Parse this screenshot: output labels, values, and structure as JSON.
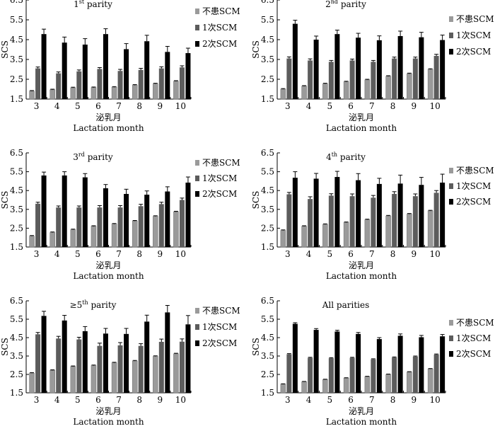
{
  "figure": {
    "shared": {
      "ylabel": "SCS",
      "xlabel_cn": "泌乳月",
      "xlabel_en": "Lactation month",
      "categories": [
        "3",
        "4",
        "5",
        "6",
        "7",
        "8",
        "9",
        "10"
      ],
      "yticks": [
        "1.5",
        "2.5",
        "3.5",
        "4.5",
        "5.5",
        "6.5"
      ],
      "legend": [
        "不患SCM",
        "1次SCM",
        "2次SCM"
      ],
      "colors": {
        "none": "#9a9a9a",
        "once": "#5c5c5c",
        "twice": "#000000"
      }
    }
  },
  "chart_data": [
    {
      "type": "bar",
      "title": "1st parity",
      "title_main": "1",
      "title_sup": "st",
      "title_rest": " parity",
      "categories": [
        "3",
        "4",
        "5",
        "6",
        "7",
        "8",
        "9",
        "10"
      ],
      "ylim": [
        1.5,
        6.5
      ],
      "ylabel": "SCS",
      "xlabel": "泌乳月 Lactation month",
      "legend_position": "top-right",
      "series": [
        {
          "name": "不患SCM",
          "values": [
            1.9,
            1.97,
            2.07,
            2.08,
            2.1,
            2.2,
            2.27,
            2.4
          ],
          "errors": [
            0.03,
            0.03,
            0.03,
            0.03,
            0.03,
            0.03,
            0.03,
            0.03
          ]
        },
        {
          "name": "1次SCM",
          "values": [
            3.05,
            2.8,
            2.9,
            3.02,
            2.92,
            2.97,
            3.05,
            3.1
          ],
          "errors": [
            0.07,
            0.07,
            0.07,
            0.07,
            0.08,
            0.08,
            0.08,
            0.08
          ]
        },
        {
          "name": "2次SCM",
          "values": [
            4.78,
            4.35,
            4.25,
            4.78,
            4.02,
            4.42,
            3.88,
            3.82
          ],
          "errors": [
            0.25,
            0.28,
            0.3,
            0.27,
            0.28,
            0.3,
            0.28,
            0.25
          ]
        }
      ]
    },
    {
      "type": "bar",
      "title": "2nd parity",
      "title_main": "2",
      "title_sup": "nd",
      "title_rest": " parity",
      "categories": [
        "3",
        "4",
        "5",
        "6",
        "7",
        "8",
        "9",
        "10"
      ],
      "ylim": [
        1.5,
        6.5
      ],
      "ylabel": "SCS",
      "xlabel": "泌乳月 Lactation month",
      "legend_position": "top-right",
      "series": [
        {
          "name": "不患SCM",
          "values": [
            2.0,
            2.15,
            2.27,
            2.37,
            2.47,
            2.65,
            2.78,
            3.0
          ],
          "errors": [
            0.03,
            0.03,
            0.03,
            0.03,
            0.03,
            0.03,
            0.03,
            0.03
          ]
        },
        {
          "name": "1次SCM",
          "values": [
            3.55,
            3.45,
            3.38,
            3.45,
            3.38,
            3.55,
            3.55,
            3.68
          ],
          "errors": [
            0.08,
            0.08,
            0.07,
            0.07,
            0.07,
            0.07,
            0.07,
            0.08
          ]
        },
        {
          "name": "2次SCM",
          "values": [
            5.3,
            4.5,
            4.78,
            4.6,
            4.47,
            4.68,
            4.62,
            4.48
          ],
          "errors": [
            0.18,
            0.18,
            0.2,
            0.22,
            0.22,
            0.25,
            0.25,
            0.25
          ]
        }
      ]
    },
    {
      "type": "bar",
      "title": "3rd parity",
      "title_main": "3",
      "title_sup": "rd",
      "title_rest": " parity",
      "categories": [
        "3",
        "4",
        "5",
        "6",
        "7",
        "8",
        "9",
        "10"
      ],
      "ylim": [
        1.5,
        6.5
      ],
      "ylabel": "SCS",
      "xlabel": "泌乳月 Lactation month",
      "legend_position": "top-right",
      "series": [
        {
          "name": "不患SCM",
          "values": [
            2.08,
            2.27,
            2.42,
            2.6,
            2.72,
            2.88,
            3.13,
            3.37
          ],
          "errors": [
            0.03,
            0.03,
            0.03,
            0.03,
            0.03,
            0.03,
            0.03,
            0.03
          ]
        },
        {
          "name": "1次SCM",
          "values": [
            3.8,
            3.6,
            3.6,
            3.6,
            3.6,
            3.67,
            3.78,
            4.0
          ],
          "errors": [
            0.08,
            0.08,
            0.08,
            0.1,
            0.1,
            0.1,
            0.1,
            0.1
          ]
        },
        {
          "name": "2次SCM",
          "values": [
            5.3,
            5.3,
            5.2,
            4.62,
            4.32,
            4.28,
            4.45,
            4.92
          ],
          "errors": [
            0.18,
            0.2,
            0.2,
            0.2,
            0.25,
            0.2,
            0.25,
            0.3
          ]
        }
      ]
    },
    {
      "type": "bar",
      "title": "4th parity",
      "title_main": "4",
      "title_sup": "th",
      "title_rest": " parity",
      "categories": [
        "3",
        "4",
        "5",
        "6",
        "7",
        "8",
        "9",
        "10"
      ],
      "ylim": [
        1.5,
        6.5
      ],
      "ylabel": "SCS",
      "xlabel": "泌乳月 Lactation month",
      "legend_position": "top-right",
      "series": [
        {
          "name": "不患SCM",
          "values": [
            2.38,
            2.6,
            2.7,
            2.8,
            2.95,
            3.15,
            3.25,
            3.42
          ],
          "errors": [
            0.03,
            0.03,
            0.03,
            0.03,
            0.03,
            0.03,
            0.03,
            0.03
          ]
        },
        {
          "name": "1次SCM",
          "values": [
            4.3,
            4.05,
            4.23,
            4.2,
            4.12,
            4.32,
            4.2,
            4.38
          ],
          "errors": [
            0.1,
            0.12,
            0.1,
            0.12,
            0.12,
            0.12,
            0.12,
            0.12
          ]
        },
        {
          "name": "2次SCM",
          "values": [
            5.18,
            5.13,
            5.22,
            5.05,
            4.85,
            4.87,
            4.8,
            4.92
          ],
          "errors": [
            0.32,
            0.28,
            0.3,
            0.35,
            0.3,
            0.45,
            0.4,
            0.45
          ]
        }
      ]
    },
    {
      "type": "bar",
      "title": "≥5th parity",
      "title_main": "≥5",
      "title_sup": "th",
      "title_rest": " parity",
      "categories": [
        "3",
        "4",
        "5",
        "6",
        "7",
        "8",
        "9",
        "10"
      ],
      "ylim": [
        1.5,
        6.5
      ],
      "ylabel": "SCS",
      "xlabel": "泌乳月 Lactation month",
      "legend_position": "right",
      "series": [
        {
          "name": "不患SCM",
          "values": [
            2.57,
            2.72,
            2.93,
            2.98,
            3.13,
            3.23,
            3.48,
            3.62
          ],
          "errors": [
            0.03,
            0.03,
            0.03,
            0.03,
            0.03,
            0.03,
            0.03,
            0.03
          ]
        },
        {
          "name": "1次SCM",
          "values": [
            4.68,
            4.45,
            4.4,
            4.05,
            4.08,
            4.05,
            4.27,
            4.28
          ],
          "errors": [
            0.1,
            0.12,
            0.12,
            0.15,
            0.15,
            0.12,
            0.15,
            0.15
          ]
        },
        {
          "name": "2次SCM",
          "values": [
            5.68,
            5.43,
            4.85,
            4.72,
            4.7,
            5.37,
            5.87,
            5.22
          ],
          "errors": [
            0.25,
            0.28,
            0.25,
            0.28,
            0.3,
            0.35,
            0.38,
            0.48
          ]
        }
      ]
    },
    {
      "type": "bar",
      "title": "All parities",
      "title_main": "All parities",
      "title_sup": "",
      "title_rest": "",
      "categories": [
        "3",
        "4",
        "5",
        "6",
        "7",
        "8",
        "9",
        "10"
      ],
      "ylim": [
        1.5,
        6.5
      ],
      "ylabel": "SCS",
      "xlabel": "泌乳月 Lactation month",
      "legend_position": "right",
      "series": [
        {
          "name": "不患SCM",
          "values": [
            1.97,
            2.1,
            2.22,
            2.3,
            2.38,
            2.5,
            2.63,
            2.8
          ],
          "errors": [
            0.02,
            0.02,
            0.02,
            0.02,
            0.02,
            0.02,
            0.02,
            0.02
          ]
        },
        {
          "name": "1次SCM",
          "values": [
            3.6,
            3.4,
            3.38,
            3.4,
            3.32,
            3.42,
            3.47,
            3.58
          ],
          "errors": [
            0.03,
            0.03,
            0.03,
            0.03,
            0.03,
            0.03,
            0.03,
            0.03
          ]
        },
        {
          "name": "2次SCM",
          "values": [
            5.25,
            4.92,
            4.83,
            4.7,
            4.42,
            4.6,
            4.52,
            4.57
          ],
          "errors": [
            0.06,
            0.07,
            0.07,
            0.08,
            0.08,
            0.1,
            0.1,
            0.1
          ]
        }
      ]
    }
  ]
}
